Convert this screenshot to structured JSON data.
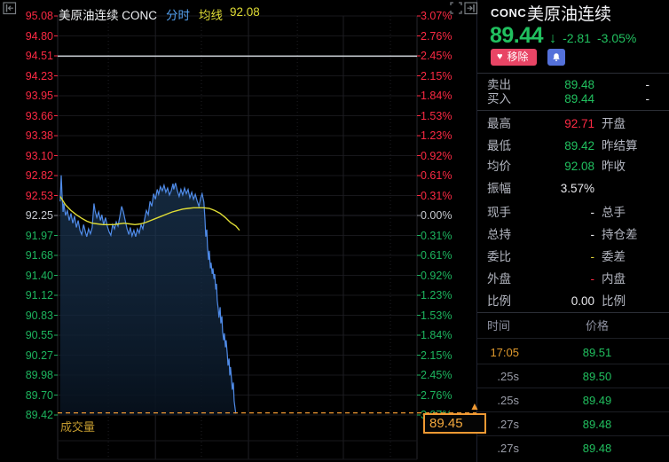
{
  "chart_header": {
    "symbol": "美原油连续 CONC",
    "mode": "分时",
    "ma_label": "均线",
    "ma_value": "92.08"
  },
  "icons": {
    "collapse_left": "collapse-left",
    "fullscreen": "fullscreen",
    "expand_right": "expand-right",
    "heart": "♥",
    "bell": "bell",
    "down_arrow": "↓",
    "up_arrow": "▲"
  },
  "colors": {
    "up_red": "#fb2943",
    "down_green": "#1db45e",
    "value_green": "#21c05f",
    "neutral": "#c6c9cf",
    "price_line": "#4f8be8",
    "ma_line": "#dfdc35",
    "alert_line": "#c2c6cc",
    "current_price_line": "#ef9933",
    "remove_button": "#e84565",
    "bell_button": "#5471da"
  },
  "chart_data": {
    "type": "line",
    "title": "美原油连续 CONC 分时",
    "y_axis_left": [
      "95.08",
      "94.80",
      "94.51",
      "94.23",
      "93.95",
      "93.66",
      "93.38",
      "93.10",
      "92.82",
      "92.53",
      "92.25",
      "91.97",
      "91.68",
      "91.40",
      "91.12",
      "90.83",
      "90.55",
      "90.27",
      "89.98",
      "89.70",
      "89.42"
    ],
    "y_axis_right_pct": [
      "3.07%",
      "2.76%",
      "2.45%",
      "2.15%",
      "1.84%",
      "1.53%",
      "1.23%",
      "0.92%",
      "0.61%",
      "0.31%",
      "0.00%",
      "0.31%",
      "0.61%",
      "0.92%",
      "1.23%",
      "1.53%",
      "1.84%",
      "2.15%",
      "2.45%",
      "2.76%",
      "3.07%"
    ],
    "price_range": [
      89.42,
      95.08
    ],
    "prev_close_level": 92.25,
    "alert_line": 94.51,
    "current_price": 89.45,
    "volume_label": "成交量",
    "legend_position": "top",
    "grid": true,
    "series": [
      {
        "name": "price",
        "color": "#4f8be8",
        "points": [
          [
            0.007,
            92.45
          ],
          [
            0.01,
            92.82
          ],
          [
            0.012,
            92.55
          ],
          [
            0.015,
            92.3
          ],
          [
            0.017,
            92.42
          ],
          [
            0.022,
            92.25
          ],
          [
            0.027,
            92.32
          ],
          [
            0.032,
            92.18
          ],
          [
            0.037,
            92.28
          ],
          [
            0.042,
            92.14
          ],
          [
            0.047,
            92.24
          ],
          [
            0.052,
            92.08
          ],
          [
            0.057,
            92.18
          ],
          [
            0.062,
            92.04
          ],
          [
            0.067,
            91.98
          ],
          [
            0.072,
            92.12
          ],
          [
            0.077,
            92.02
          ],
          [
            0.081,
            91.95
          ],
          [
            0.086,
            92.06
          ],
          [
            0.091,
            91.99
          ],
          [
            0.096,
            92.08
          ],
          [
            0.101,
            92.42
          ],
          [
            0.104,
            92.32
          ],
          [
            0.109,
            92.22
          ],
          [
            0.114,
            92.3
          ],
          [
            0.119,
            92.18
          ],
          [
            0.123,
            92.26
          ],
          [
            0.128,
            92.12
          ],
          [
            0.133,
            92.22
          ],
          [
            0.138,
            92.1
          ],
          [
            0.143,
            92.02
          ],
          [
            0.148,
            91.97
          ],
          [
            0.153,
            92.12
          ],
          [
            0.158,
            92.06
          ],
          [
            0.163,
            92.16
          ],
          [
            0.168,
            92.1
          ],
          [
            0.173,
            92.24
          ],
          [
            0.178,
            92.38
          ],
          [
            0.183,
            92.3
          ],
          [
            0.188,
            92.18
          ],
          [
            0.193,
            92.06
          ],
          [
            0.198,
            91.98
          ],
          [
            0.202,
            92.08
          ],
          [
            0.207,
            91.96
          ],
          [
            0.212,
            92.04
          ],
          [
            0.217,
            91.95
          ],
          [
            0.222,
            92.06
          ],
          [
            0.227,
            92.0
          ],
          [
            0.232,
            92.12
          ],
          [
            0.237,
            92.06
          ],
          [
            0.242,
            92.2
          ],
          [
            0.247,
            92.32
          ],
          [
            0.252,
            92.26
          ],
          [
            0.257,
            92.45
          ],
          [
            0.262,
            92.38
          ],
          [
            0.267,
            92.56
          ],
          [
            0.272,
            92.48
          ],
          [
            0.277,
            92.62
          ],
          [
            0.281,
            92.55
          ],
          [
            0.286,
            92.66
          ],
          [
            0.291,
            92.6
          ],
          [
            0.296,
            92.68
          ],
          [
            0.301,
            92.58
          ],
          [
            0.306,
            92.64
          ],
          [
            0.311,
            92.54
          ],
          [
            0.316,
            92.6
          ],
          [
            0.321,
            92.7
          ],
          [
            0.323,
            92.62
          ],
          [
            0.328,
            92.71
          ],
          [
            0.333,
            92.6
          ],
          [
            0.338,
            92.52
          ],
          [
            0.343,
            92.62
          ],
          [
            0.348,
            92.54
          ],
          [
            0.353,
            92.64
          ],
          [
            0.358,
            92.56
          ],
          [
            0.363,
            92.62
          ],
          [
            0.368,
            92.5
          ],
          [
            0.373,
            92.58
          ],
          [
            0.378,
            92.48
          ],
          [
            0.383,
            92.55
          ],
          [
            0.388,
            92.46
          ],
          [
            0.393,
            92.38
          ],
          [
            0.398,
            92.5
          ],
          [
            0.402,
            92.56
          ],
          [
            0.407,
            92.44
          ],
          [
            0.41,
            92.2
          ],
          [
            0.412,
            91.95
          ],
          [
            0.415,
            92.05
          ],
          [
            0.417,
            91.8
          ],
          [
            0.42,
            91.62
          ],
          [
            0.422,
            91.75
          ],
          [
            0.425,
            91.5
          ],
          [
            0.427,
            91.58
          ],
          [
            0.43,
            91.42
          ],
          [
            0.432,
            91.5
          ],
          [
            0.435,
            91.35
          ],
          [
            0.437,
            91.42
          ],
          [
            0.44,
            91.2
          ],
          [
            0.442,
            91.28
          ],
          [
            0.444,
            91.05
          ],
          [
            0.447,
            90.92
          ],
          [
            0.449,
            90.8
          ],
          [
            0.452,
            90.95
          ],
          [
            0.454,
            90.72
          ],
          [
            0.457,
            90.82
          ],
          [
            0.459,
            90.6
          ],
          [
            0.462,
            90.48
          ],
          [
            0.464,
            90.58
          ],
          [
            0.467,
            90.38
          ],
          [
            0.469,
            90.48
          ],
          [
            0.472,
            90.28
          ],
          [
            0.474,
            90.12
          ],
          [
            0.477,
            90.22
          ],
          [
            0.479,
            89.98
          ],
          [
            0.481,
            90.1
          ],
          [
            0.484,
            89.92
          ],
          [
            0.486,
            89.78
          ],
          [
            0.489,
            89.88
          ],
          [
            0.491,
            89.62
          ],
          [
            0.494,
            89.5
          ],
          [
            0.496,
            89.44
          ]
        ]
      },
      {
        "name": "均线",
        "color": "#dfdc35",
        "points": [
          [
            0.007,
            92.52
          ],
          [
            0.022,
            92.4
          ],
          [
            0.037,
            92.32
          ],
          [
            0.052,
            92.26
          ],
          [
            0.067,
            92.21
          ],
          [
            0.081,
            92.17
          ],
          [
            0.096,
            92.14
          ],
          [
            0.111,
            92.13
          ],
          [
            0.126,
            92.12
          ],
          [
            0.141,
            92.12
          ],
          [
            0.156,
            92.12
          ],
          [
            0.17,
            92.13
          ],
          [
            0.185,
            92.14
          ],
          [
            0.2,
            92.13
          ],
          [
            0.215,
            92.12
          ],
          [
            0.23,
            92.13
          ],
          [
            0.244,
            92.15
          ],
          [
            0.259,
            92.18
          ],
          [
            0.274,
            92.21
          ],
          [
            0.289,
            92.24
          ],
          [
            0.304,
            92.27
          ],
          [
            0.319,
            92.3
          ],
          [
            0.333,
            92.32
          ],
          [
            0.348,
            92.34
          ],
          [
            0.363,
            92.35
          ],
          [
            0.378,
            92.36
          ],
          [
            0.393,
            92.36
          ],
          [
            0.407,
            92.36
          ],
          [
            0.422,
            92.35
          ],
          [
            0.437,
            92.32
          ],
          [
            0.452,
            92.28
          ],
          [
            0.467,
            92.22
          ],
          [
            0.481,
            92.15
          ],
          [
            0.496,
            92.1
          ],
          [
            0.506,
            92.04
          ]
        ]
      }
    ]
  },
  "price_tag": {
    "value": "89.45"
  },
  "panel": {
    "code": "CONC",
    "name": "美原油连续",
    "last": "89.44",
    "change": "-2.81",
    "change_pct": "-3.05%",
    "remove_label": "移除",
    "stats": [
      {
        "label": "卖出",
        "value": "89.48",
        "value_color": "green",
        "tail": "-"
      },
      {
        "label": "买入",
        "value": "89.44",
        "value_color": "green",
        "tail": "-"
      },
      {
        "label": "最高",
        "value": "92.71",
        "value_color": "red",
        "label2": "开盘"
      },
      {
        "label": "最低",
        "value": "89.42",
        "value_color": "green",
        "label2": "昨结算"
      },
      {
        "label": "均价",
        "value": "92.08",
        "value_color": "green",
        "label2": "昨收"
      },
      {
        "label": "振幅",
        "value": "3.57%",
        "value_color": "white"
      },
      {
        "label": "现手",
        "value": "-",
        "value_color": "white",
        "label2": "总手"
      },
      {
        "label": "总持",
        "value": "-",
        "value_color": "white",
        "label2": "持仓差"
      },
      {
        "label": "委比",
        "value": "-",
        "value_color": "yellow",
        "label2": "委差"
      },
      {
        "label": "外盘",
        "value": "-",
        "value_color": "red",
        "label2": "内盘"
      },
      {
        "label": "比例",
        "value": "0.00",
        "value_color": "white",
        "label2": "比例"
      }
    ],
    "tape_header": {
      "time": "时间",
      "price": "价格"
    },
    "tape": [
      {
        "time": "17:05",
        "time_color": "orange",
        "price": "89.51"
      },
      {
        "time": ".25s",
        "time_color": "gray",
        "price": "89.50"
      },
      {
        "time": ".25s",
        "time_color": "gray",
        "price": "89.49"
      },
      {
        "time": ".27s",
        "time_color": "gray",
        "price": "89.48"
      },
      {
        "time": ".27s",
        "time_color": "gray",
        "price": "89.48"
      }
    ]
  }
}
